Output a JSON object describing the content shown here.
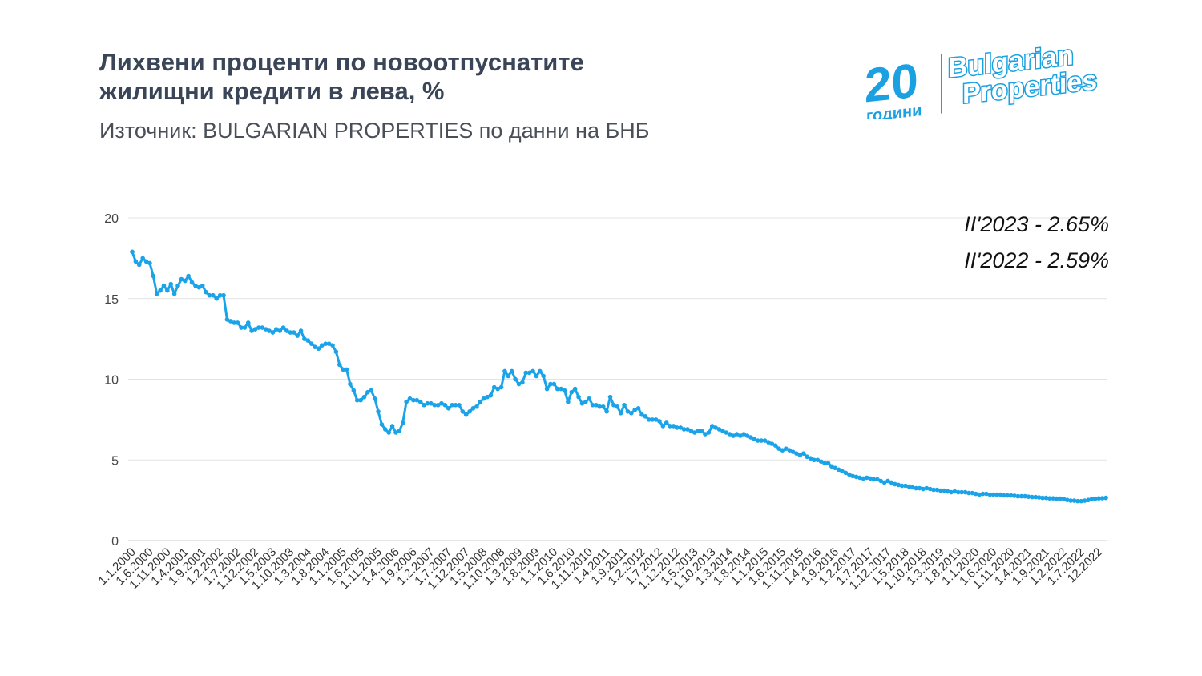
{
  "title_line1": "Лихвени проценти по новоотпуснатите",
  "title_line2": "жилищни кредити в лева, %",
  "subtitle": "Източник: BULGARIAN PROPERTIES по данни на БНБ",
  "logo": {
    "number": "20",
    "years": "години",
    "line1": "Bulgarian",
    "line2": "Properties"
  },
  "colors": {
    "line": "#1aa3e8",
    "title": "#3a4658",
    "logo": "#1ba1e2",
    "grid": "#e3e3e3"
  },
  "chart_data": {
    "type": "line",
    "title": "Лихвени проценти по новоотпуснатите жилищни кредити в лева, %",
    "ylim": [
      0,
      20
    ],
    "yticks": [
      0,
      5,
      10,
      15,
      20
    ],
    "grid": true,
    "annotations": [
      "II'2023 - 2.65%",
      "II'2022 - 2.59%"
    ],
    "xtick_labels": [
      "1.1.2000",
      "1.6.2000",
      "1.11.2000",
      "1.4.2001",
      "1.9.2001",
      "1.2.2002",
      "1.7.2002",
      "1.12.2002",
      "1.5.2003",
      "1.10.2003",
      "1.3.2004",
      "1.8.2004",
      "1.1.2005",
      "1.6.2005",
      "1.11.2005",
      "1.4.2006",
      "1.9.2006",
      "1.2.2007",
      "1.7.2007",
      "1.12.2007",
      "1.5.2008",
      "1.10.2008",
      "1.3.2009",
      "1.8.2009",
      "1.1.2010",
      "1.6.2010",
      "1.11.2010",
      "1.4.2011",
      "1.9.2011",
      "1.2.2012",
      "1.7.2012",
      "1.12.2012",
      "1.5.2013",
      "1.10.2013",
      "1.3.2014",
      "1.8.2014",
      "1.1.2015",
      "1.6.2015",
      "1.11.2015",
      "1.4.2016",
      "1.9.2016",
      "1.2.2017",
      "1.7.2017",
      "1.12.2017",
      "1.5.2018",
      "1.10.2018",
      "1.3.2019",
      "1.8.2019",
      "1.1.2020",
      "1.6.2020",
      "1.11.2020",
      "1.4.2021",
      "1.9.2021",
      "1.2.2022",
      "1.7.2022",
      "12.2022"
    ],
    "series": [
      {
        "values": [
          17.9,
          17.3,
          17.1,
          17.5,
          17.3,
          17.2,
          16.4,
          15.3,
          15.5,
          15.8,
          15.5,
          15.9,
          15.3,
          15.8,
          16.2,
          16.1,
          16.4,
          16.0,
          15.8,
          15.7,
          15.8,
          15.4,
          15.2,
          15.2,
          15.0,
          15.2,
          15.2,
          13.7,
          13.6,
          13.5,
          13.5,
          13.2,
          13.2,
          13.5,
          13.0,
          13.1,
          13.2,
          13.2,
          13.1,
          13.0,
          12.9,
          13.1,
          13.0,
          13.2,
          13.0,
          12.9,
          12.9,
          12.7,
          13.0,
          12.5,
          12.4,
          12.2,
          12.0,
          11.9,
          12.1,
          12.2,
          12.2,
          12.1,
          11.7,
          10.9,
          10.6,
          10.6,
          9.7,
          9.3,
          8.7,
          8.7,
          8.9,
          9.2,
          9.3,
          8.8,
          8.0,
          7.2,
          6.9,
          6.7,
          7.1,
          6.7,
          6.8,
          7.3,
          8.6,
          8.8,
          8.7,
          8.7,
          8.6,
          8.4,
          8.5,
          8.5,
          8.4,
          8.4,
          8.5,
          8.4,
          8.2,
          8.4,
          8.4,
          8.4,
          8.0,
          7.8,
          8.0,
          8.2,
          8.3,
          8.6,
          8.8,
          8.9,
          9.0,
          9.5,
          9.4,
          9.5,
          10.5,
          10.2,
          10.5,
          10.0,
          9.7,
          9.8,
          10.4,
          10.4,
          10.5,
          10.2,
          10.5,
          10.2,
          9.4,
          9.7,
          9.7,
          9.4,
          9.4,
          9.3,
          8.6,
          9.2,
          9.4,
          8.9,
          8.5,
          8.6,
          8.8,
          8.4,
          8.4,
          8.3,
          8.3,
          8.0,
          8.9,
          8.4,
          8.3,
          7.9,
          8.4,
          8.0,
          7.9,
          8.1,
          8.2,
          7.8,
          7.7,
          7.5,
          7.5,
          7.5,
          7.4,
          7.1,
          7.3,
          7.1,
          7.1,
          7.0,
          7.0,
          6.9,
          6.9,
          6.8,
          6.7,
          6.8,
          6.8,
          6.6,
          6.7,
          7.1,
          7.0,
          6.9,
          6.8,
          6.7,
          6.6,
          6.5,
          6.6,
          6.5,
          6.6,
          6.5,
          6.4,
          6.3,
          6.2,
          6.2,
          6.2,
          6.1,
          6.0,
          5.9,
          5.7,
          5.6,
          5.7,
          5.6,
          5.5,
          5.4,
          5.3,
          5.4,
          5.2,
          5.1,
          5.0,
          5.0,
          4.9,
          4.8,
          4.8,
          4.6,
          4.5,
          4.4,
          4.3,
          4.2,
          4.1,
          4.0,
          3.95,
          3.9,
          3.85,
          3.9,
          3.85,
          3.8,
          3.8,
          3.7,
          3.6,
          3.7,
          3.6,
          3.5,
          3.45,
          3.4,
          3.4,
          3.35,
          3.3,
          3.25,
          3.25,
          3.2,
          3.25,
          3.2,
          3.15,
          3.15,
          3.1,
          3.1,
          3.05,
          3.0,
          3.05,
          3.0,
          3.0,
          3.0,
          2.95,
          2.95,
          2.9,
          2.85,
          2.9,
          2.9,
          2.85,
          2.85,
          2.85,
          2.85,
          2.8,
          2.8,
          2.8,
          2.78,
          2.75,
          2.75,
          2.75,
          2.72,
          2.7,
          2.7,
          2.68,
          2.65,
          2.65,
          2.62,
          2.62,
          2.6,
          2.6,
          2.59,
          2.52,
          2.48,
          2.48,
          2.45,
          2.45,
          2.48,
          2.52,
          2.58,
          2.6,
          2.62,
          2.63,
          2.65
        ]
      }
    ]
  }
}
